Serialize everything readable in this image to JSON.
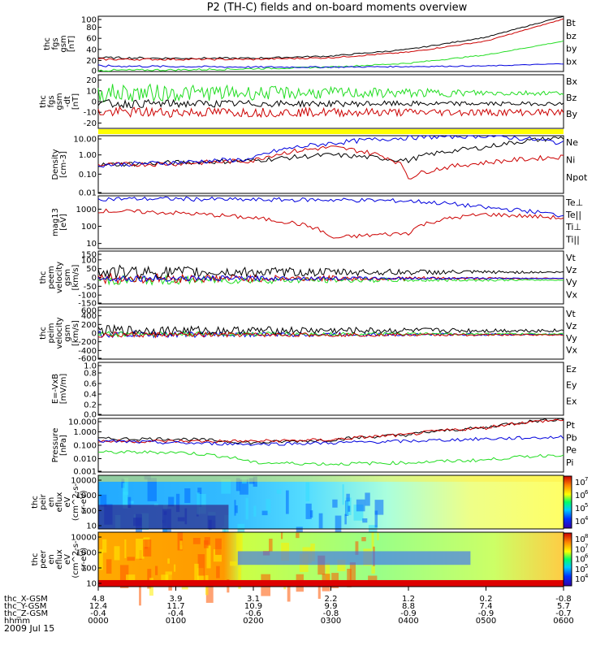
{
  "title": "P2 (TH-C) fields and on-board moments overview",
  "date": "2009 Jul 15",
  "colors": {
    "black": "#000000",
    "red": "#cc0000",
    "green": "#22dd22",
    "blue": "#0000dd",
    "yellow": "#ffff00"
  },
  "panels": [
    {
      "id": "fgs-gsm",
      "ylabel": [
        "thc",
        "fgs",
        "gsm",
        "[nT]"
      ],
      "yticks": [
        "100",
        "80",
        "60",
        "40",
        "20",
        "0"
      ],
      "ylim": [
        0,
        100
      ],
      "scale": "linear",
      "legend": [
        {
          "text": "Bt",
          "color": "black"
        },
        {
          "text": "bz",
          "color": "red"
        },
        {
          "text": "by",
          "color": "green"
        },
        {
          "text": "bx",
          "color": "blue"
        }
      ]
    },
    {
      "id": "fgs-gsm-detrend",
      "ylabel": [
        "thc",
        "fgs",
        "gsm",
        "-dt",
        "[nT]"
      ],
      "yticks": [
        "20",
        "10",
        "0",
        "-10",
        "-20"
      ],
      "ylim": [
        -25,
        25
      ],
      "scale": "linear",
      "legend": [
        {
          "text": "Bx",
          "color": "black"
        },
        {
          "text": "Bz",
          "color": "red"
        },
        {
          "text": "By",
          "color": "green"
        }
      ]
    },
    {
      "id": "density",
      "ylabel": [
        "Density",
        "[cm-3]"
      ],
      "yticks": [
        "10.00",
        "1.00",
        "0.10",
        "0.01"
      ],
      "ylim": [
        0.01,
        10
      ],
      "scale": "log",
      "legend": [
        {
          "text": "Ne",
          "color": "red"
        },
        {
          "text": "Ni",
          "color": "black"
        },
        {
          "text": "Npot",
          "color": "blue"
        }
      ]
    },
    {
      "id": "temperature",
      "ylabel": [
        "mag13",
        "[eV]"
      ],
      "yticks": [
        "1000",
        "100",
        "10"
      ],
      "ylim": [
        5,
        6000
      ],
      "scale": "log",
      "legend": [
        {
          "text": "Te⊥",
          "color": "red"
        },
        {
          "text": "Te||",
          "color": "black"
        },
        {
          "text": "Ti⊥",
          "color": "blue"
        },
        {
          "text": "Ti||",
          "color": "green"
        }
      ]
    },
    {
      "id": "peem-velocity",
      "ylabel": [
        "thc",
        "peem",
        "velocity",
        "gsm",
        "[km/s]"
      ],
      "yticks": [
        "150",
        "100",
        "50",
        "0",
        "-50",
        "-100",
        "-150"
      ],
      "ylim": [
        -150,
        150
      ],
      "scale": "linear",
      "legend": [
        {
          "text": "Vt",
          "color": "black"
        },
        {
          "text": "Vz",
          "color": "red"
        },
        {
          "text": "Vy",
          "color": "green"
        },
        {
          "text": "Vx",
          "color": "blue"
        }
      ]
    },
    {
      "id": "peim-velocity",
      "ylabel": [
        "thc",
        "peim",
        "velocity",
        "gsm",
        "[km/s]"
      ],
      "yticks": [
        "600",
        "400",
        "200",
        "0",
        "-200",
        "-400",
        "-600"
      ],
      "ylim": [
        -600,
        600
      ],
      "scale": "linear",
      "legend": [
        {
          "text": "Vt",
          "color": "black"
        },
        {
          "text": "Vz",
          "color": "red"
        },
        {
          "text": "Vy",
          "color": "green"
        },
        {
          "text": "Vx",
          "color": "blue"
        }
      ]
    },
    {
      "id": "efield",
      "ylabel": [
        "E=-VxB",
        "[mV/m]"
      ],
      "yticks": [
        "1.0",
        "0.8",
        "0.6",
        "0.4",
        "0.2",
        "0.0"
      ],
      "ylim": [
        0,
        1
      ],
      "scale": "linear",
      "legend": [
        {
          "text": "Ez",
          "color": "red"
        },
        {
          "text": "Ey",
          "color": "green"
        },
        {
          "text": "Ex",
          "color": "blue"
        }
      ]
    },
    {
      "id": "pressure",
      "ylabel": [
        "Pressure",
        "[nPa]"
      ],
      "yticks": [
        "10.000",
        "1.000",
        "0.100",
        "0.010",
        "0.001"
      ],
      "ylim": [
        0.001,
        10
      ],
      "scale": "log",
      "legend": [
        {
          "text": "Pt",
          "color": "black"
        },
        {
          "text": "Pb",
          "color": "red"
        },
        {
          "text": "Pe",
          "color": "green"
        },
        {
          "text": "Pi",
          "color": "blue"
        }
      ]
    },
    {
      "id": "peir-spectrogram",
      "ylabel": [
        "thc",
        "peir",
        "en",
        "eflux",
        "eV",
        "(cm^2-s-",
        "sr-eV)"
      ],
      "yticks": [
        "10000",
        "1000",
        "100",
        "10"
      ],
      "scale": "log",
      "colorbar": [
        "10",
        "10",
        "10",
        "10"
      ],
      "colorbar_exp": [
        "7",
        "6",
        "5",
        "4"
      ]
    },
    {
      "id": "peer-spectrogram",
      "ylabel": [
        "thc",
        "peer",
        "en",
        "eflux",
        "eV",
        "(cm^2-s-",
        "sr-eV)"
      ],
      "yticks": [
        "10000",
        "1000",
        "100",
        "10"
      ],
      "scale": "log",
      "colorbar": [
        "10",
        "10",
        "10",
        "10",
        "10"
      ],
      "colorbar_exp": [
        "8",
        "7",
        "6",
        "5",
        "4"
      ]
    }
  ],
  "ephemeris": {
    "labels": [
      "thc_X-GSM",
      "thc_Y-GSM",
      "thc_Z-GSM",
      "hhmm"
    ],
    "rows": [
      [
        "4.8",
        "3.9",
        "3.1",
        "2.2",
        "1.2",
        "0.2",
        "-0.8"
      ],
      [
        "12.4",
        "11.7",
        "10.9",
        "9.9",
        "8.8",
        "7.4",
        "5.7"
      ],
      [
        "-0.4",
        "-0.4",
        "-0.6",
        "-0.8",
        "-0.9",
        "-0.9",
        "-0.7"
      ],
      [
        "0000",
        "0100",
        "0200",
        "0300",
        "0400",
        "0500",
        "0600"
      ]
    ]
  },
  "chart_data": {
    "type": "line",
    "x": [
      "0000",
      "0100",
      "0200",
      "0300",
      "0400",
      "0500",
      "0600"
    ],
    "series": [
      {
        "panel": "fgs-gsm",
        "name": "Bt",
        "values": [
          25,
          24,
          24,
          28,
          40,
          62,
          100
        ]
      },
      {
        "panel": "fgs-gsm",
        "name": "bz",
        "values": [
          22,
          22,
          22,
          25,
          35,
          55,
          95
        ]
      },
      {
        "panel": "fgs-gsm",
        "name": "by",
        "values": [
          2,
          3,
          5,
          8,
          15,
          30,
          55
        ]
      },
      {
        "panel": "fgs-gsm",
        "name": "bx",
        "values": [
          10,
          9,
          8,
          8,
          9,
          10,
          14
        ]
      },
      {
        "panel": "density",
        "name": "Ni",
        "values": [
          0.3,
          0.4,
          0.5,
          1.0,
          0.5,
          2.5,
          8.0
        ]
      },
      {
        "panel": "density",
        "name": "Ne",
        "values": [
          0.3,
          0.35,
          0.5,
          2.5,
          0.06,
          0.4,
          0.8
        ]
      },
      {
        "panel": "density",
        "name": "Npot",
        "values": [
          0.3,
          0.4,
          0.6,
          4.0,
          8.0,
          10.0,
          4.0
        ]
      },
      {
        "panel": "temperature",
        "name": "Ti⊥",
        "values": [
          4000,
          4000,
          3500,
          3500,
          3000,
          1200,
          400
        ]
      },
      {
        "panel": "temperature",
        "name": "Te⊥",
        "values": [
          800,
          600,
          300,
          20,
          40,
          500,
          300
        ]
      },
      {
        "panel": "pressure",
        "name": "Pt",
        "values": [
          0.3,
          0.3,
          0.15,
          0.25,
          0.6,
          2.0,
          9.0
        ]
      },
      {
        "panel": "pressure",
        "name": "Pb",
        "values": [
          0.2,
          0.2,
          0.2,
          0.25,
          0.6,
          2.0,
          8.0
        ]
      },
      {
        "panel": "pressure",
        "name": "Pe",
        "values": [
          0.03,
          0.03,
          0.005,
          0.004,
          0.005,
          0.008,
          0.02
        ]
      },
      {
        "panel": "pressure",
        "name": "Pi",
        "values": [
          0.2,
          0.15,
          0.12,
          0.15,
          0.2,
          0.3,
          0.4
        ]
      }
    ]
  }
}
